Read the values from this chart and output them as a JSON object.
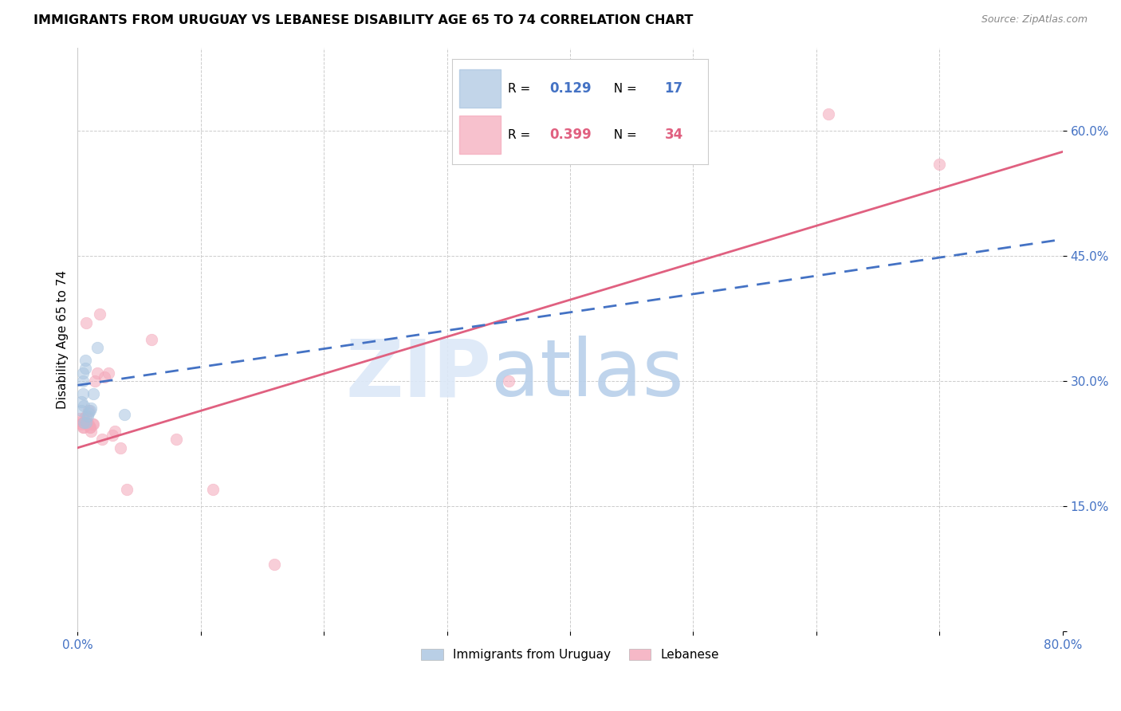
{
  "title": "IMMIGRANTS FROM URUGUAY VS LEBANESE DISABILITY AGE 65 TO 74 CORRELATION CHART",
  "source": "Source: ZipAtlas.com",
  "ylabel": "Disability Age 65 to 74",
  "xlim": [
    0.0,
    0.8
  ],
  "ylim": [
    0.0,
    0.7
  ],
  "x_ticks": [
    0.0,
    0.1,
    0.2,
    0.3,
    0.4,
    0.5,
    0.6,
    0.7,
    0.8
  ],
  "x_tick_labels": [
    "0.0%",
    "",
    "",
    "",
    "",
    "",
    "",
    "",
    "80.0%"
  ],
  "y_ticks": [
    0.0,
    0.15,
    0.3,
    0.45,
    0.6
  ],
  "y_tick_labels": [
    "",
    "15.0%",
    "30.0%",
    "45.0%",
    "60.0%"
  ],
  "uruguay_color": "#a8c4e0",
  "lebanese_color": "#f4a7b9",
  "uruguay_line_color": "#4472c4",
  "lebanese_line_color": "#e06080",
  "uruguay_x": [
    0.003,
    0.003,
    0.004,
    0.004,
    0.004,
    0.005,
    0.005,
    0.006,
    0.006,
    0.007,
    0.008,
    0.009,
    0.01,
    0.011,
    0.013,
    0.016,
    0.038
  ],
  "uruguay_y": [
    0.265,
    0.275,
    0.285,
    0.3,
    0.31,
    0.25,
    0.27,
    0.315,
    0.325,
    0.25,
    0.258,
    0.262,
    0.265,
    0.268,
    0.285,
    0.34,
    0.26
  ],
  "lebanese_x": [
    0.002,
    0.003,
    0.004,
    0.004,
    0.005,
    0.005,
    0.006,
    0.007,
    0.007,
    0.008,
    0.009,
    0.009,
    0.01,
    0.01,
    0.011,
    0.012,
    0.013,
    0.014,
    0.016,
    0.018,
    0.02,
    0.022,
    0.025,
    0.028,
    0.03,
    0.035,
    0.04,
    0.06,
    0.08,
    0.11,
    0.16,
    0.35,
    0.61,
    0.7
  ],
  "lebanese_y": [
    0.255,
    0.248,
    0.245,
    0.25,
    0.245,
    0.255,
    0.25,
    0.258,
    0.37,
    0.248,
    0.248,
    0.265,
    0.245,
    0.245,
    0.24,
    0.248,
    0.248,
    0.3,
    0.31,
    0.38,
    0.23,
    0.305,
    0.31,
    0.235,
    0.24,
    0.22,
    0.17,
    0.35,
    0.23,
    0.17,
    0.08,
    0.3,
    0.62,
    0.56
  ],
  "uru_line_x0": 0.0,
  "uru_line_x1": 0.8,
  "uru_line_y0": 0.295,
  "uru_line_y1": 0.47,
  "leb_line_x0": 0.0,
  "leb_line_x1": 0.8,
  "leb_line_y0": 0.22,
  "leb_line_y1": 0.575,
  "marker_size": 110,
  "marker_alpha": 0.55,
  "legend_r1_val": "0.129",
  "legend_n1_val": "17",
  "legend_r2_val": "0.399",
  "legend_n2_val": "34"
}
